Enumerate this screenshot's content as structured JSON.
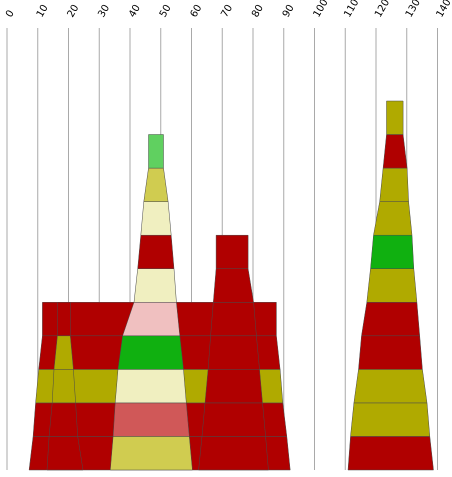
{
  "chart_data": {
    "type": "area",
    "title": "",
    "xlabel": "",
    "ylabel": "",
    "x_axis_position": "top",
    "x_ticks": [
      0,
      10,
      20,
      30,
      40,
      50,
      60,
      70,
      80,
      90,
      100,
      110,
      120,
      130,
      140
    ],
    "xlim": [
      0,
      140
    ],
    "grid": true,
    "colors": {
      "red": "#b00000",
      "olive": "#b0aa00",
      "yellow": "#d0cc50",
      "cream": "#f0efc0",
      "green": "#10b010",
      "pink": "#f0c0c0",
      "salmon": "#d05858",
      "light_green": "#60d060"
    },
    "stacks": [
      {
        "layers": [
          {
            "left": 7.2,
            "right": 92.1,
            "color": "red"
          },
          {
            "left": 8.5,
            "right": 91.0,
            "color": "red"
          },
          {
            "left": 9.3,
            "right": 89.7,
            "color": "olive"
          },
          {
            "left": 10.3,
            "right": 88.8,
            "color": "red"
          },
          {
            "left": 11.5,
            "right": 87.6,
            "color": "red"
          }
        ]
      },
      {
        "layers": [
          {
            "left": 13.0,
            "right": 24.7,
            "color": "red"
          },
          {
            "left": 13.7,
            "right": 23.0,
            "color": "red"
          },
          {
            "left": 14.7,
            "right": 22.3,
            "color": "olive"
          },
          {
            "left": 15.3,
            "right": 21.6,
            "color": "olive"
          },
          {
            "left": 16.4,
            "right": 20.6,
            "color": "red"
          }
        ]
      },
      {
        "layers": [
          {
            "left": 33.6,
            "right": 60.3,
            "color": "yellow"
          },
          {
            "left": 34.5,
            "right": 59.3,
            "color": "salmon"
          },
          {
            "left": 35.2,
            "right": 58.3,
            "color": "cream"
          },
          {
            "left": 36.1,
            "right": 57.4,
            "color": "green"
          },
          {
            "left": 37.6,
            "right": 56.2,
            "color": "pink"
          },
          {
            "left": 41.3,
            "right": 55.1,
            "color": "cream"
          },
          {
            "left": 42.5,
            "right": 54.3,
            "color": "red"
          },
          {
            "left": 43.5,
            "right": 53.4,
            "color": "cream"
          },
          {
            "left": 44.5,
            "right": 52.4,
            "color": "yellow"
          },
          {
            "left": 46.0,
            "right": 50.9,
            "color": "light_green"
          }
        ]
      },
      {
        "layers": [
          {
            "left": 62.3,
            "right": 85.0,
            "color": "red"
          },
          {
            "left": 63.4,
            "right": 84.1,
            "color": "red"
          },
          {
            "left": 64.4,
            "right": 83.1,
            "color": "red"
          },
          {
            "left": 65.4,
            "right": 82.1,
            "color": "red"
          },
          {
            "left": 66.2,
            "right": 81.1,
            "color": "red"
          },
          {
            "left": 67.1,
            "right": 80.2,
            "color": "red"
          },
          {
            "left": 68.0,
            "right": 78.4,
            "color": "red"
          }
        ]
      },
      {
        "layers": [
          {
            "left": 110.9,
            "right": 138.7,
            "color": "red"
          },
          {
            "left": 111.7,
            "right": 137.5,
            "color": "olive"
          },
          {
            "left": 112.8,
            "right": 136.6,
            "color": "olive"
          },
          {
            "left": 114.3,
            "right": 135.1,
            "color": "red"
          },
          {
            "left": 115.3,
            "right": 134.2,
            "color": "red"
          },
          {
            "left": 117.0,
            "right": 133.3,
            "color": "olive"
          },
          {
            "left": 118.2,
            "right": 132.3,
            "color": "green"
          },
          {
            "left": 119.2,
            "right": 131.7,
            "color": "olive"
          },
          {
            "left": 121.2,
            "right": 130.6,
            "color": "olive"
          },
          {
            "left": 122.3,
            "right": 130.1,
            "color": "red"
          },
          {
            "left": 123.4,
            "right": 128.8,
            "color": "olive"
          }
        ]
      }
    ]
  }
}
